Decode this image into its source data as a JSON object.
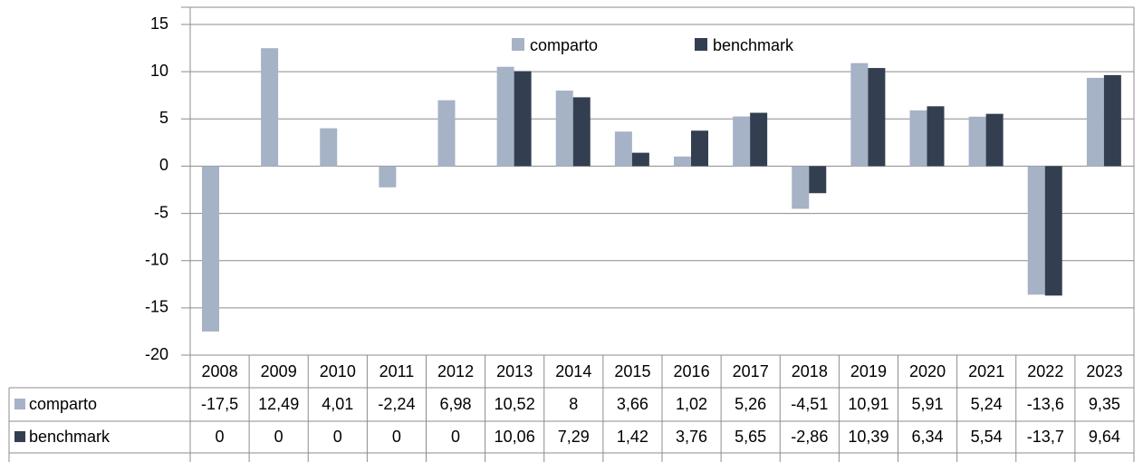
{
  "chart_data": {
    "type": "bar",
    "categories": [
      "2008",
      "2009",
      "2010",
      "2011",
      "2012",
      "2013",
      "2014",
      "2015",
      "2016",
      "2017",
      "2018",
      "2019",
      "2020",
      "2021",
      "2022",
      "2023"
    ],
    "series": [
      {
        "name": "comparto",
        "color": "#a6b2c6",
        "values": [
          -17.5,
          12.49,
          4.01,
          -2.24,
          6.98,
          10.52,
          8,
          3.66,
          1.02,
          5.26,
          -4.51,
          10.91,
          5.91,
          5.24,
          -13.6,
          9.35
        ],
        "value_labels": [
          "-17,5",
          "12,49",
          "4,01",
          "-2,24",
          "6,98",
          "10,52",
          "8",
          "3,66",
          "1,02",
          "5,26",
          "-4,51",
          "10,91",
          "5,91",
          "5,24",
          "-13,6",
          "9,35"
        ]
      },
      {
        "name": "benchmark",
        "color": "#333f50",
        "values": [
          0,
          0,
          0,
          0,
          0,
          10.06,
          7.29,
          1.42,
          3.76,
          5.65,
          -2.86,
          10.39,
          6.34,
          5.54,
          -13.7,
          9.64
        ],
        "value_labels": [
          "0",
          "0",
          "0",
          "0",
          "0",
          "10,06",
          "7,29",
          "1,42",
          "3,76",
          "5,65",
          "-2,86",
          "10,39",
          "6,34",
          "5,54",
          "-13,7",
          "9,64"
        ]
      }
    ],
    "ylim": [
      -20,
      15
    ],
    "yticks": [
      -20,
      -15,
      -10,
      -5,
      0,
      5,
      10,
      15
    ],
    "grid": true
  }
}
